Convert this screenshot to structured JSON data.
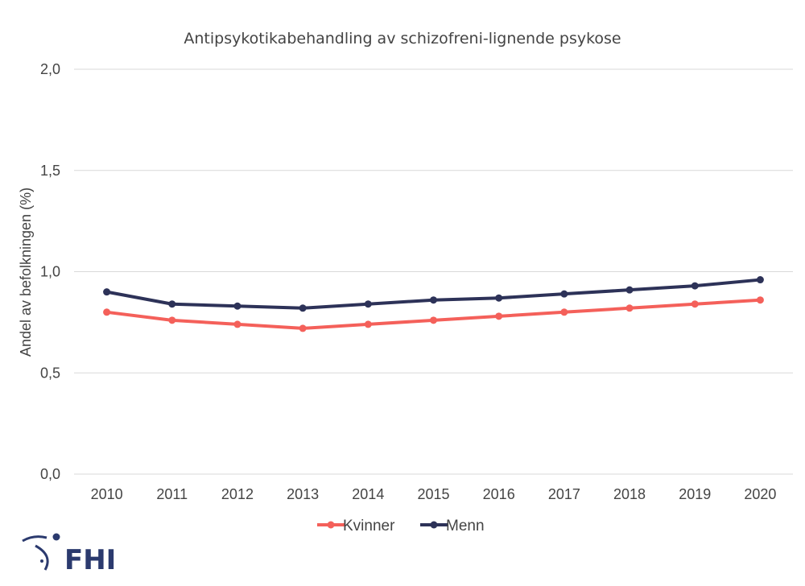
{
  "chart_data": {
    "type": "line",
    "title": "Antipsykotikabehandling av schizofreni-lignende psykose",
    "xlabel": "",
    "ylabel": "Andel av befolkningen (%)",
    "categories": [
      "2010",
      "2011",
      "2012",
      "2013",
      "2014",
      "2015",
      "2016",
      "2017",
      "2018",
      "2019",
      "2020"
    ],
    "y_ticks": [
      "0,0",
      "0,5",
      "1,0",
      "1,5",
      "2,0"
    ],
    "ylim": [
      0,
      2.0
    ],
    "grid": true,
    "legend_position": "bottom",
    "series": [
      {
        "name": "Kvinner",
        "color": "#f4605a",
        "values": [
          0.8,
          0.76,
          0.74,
          0.72,
          0.74,
          0.76,
          0.78,
          0.8,
          0.82,
          0.84,
          0.86
        ]
      },
      {
        "name": "Menn",
        "color": "#2d3258",
        "values": [
          0.9,
          0.84,
          0.83,
          0.82,
          0.84,
          0.86,
          0.87,
          0.89,
          0.91,
          0.93,
          0.96
        ]
      }
    ]
  },
  "logo": {
    "text": "FHI",
    "color": "#2b3a6e",
    "icon": "fhi-logo-icon"
  }
}
